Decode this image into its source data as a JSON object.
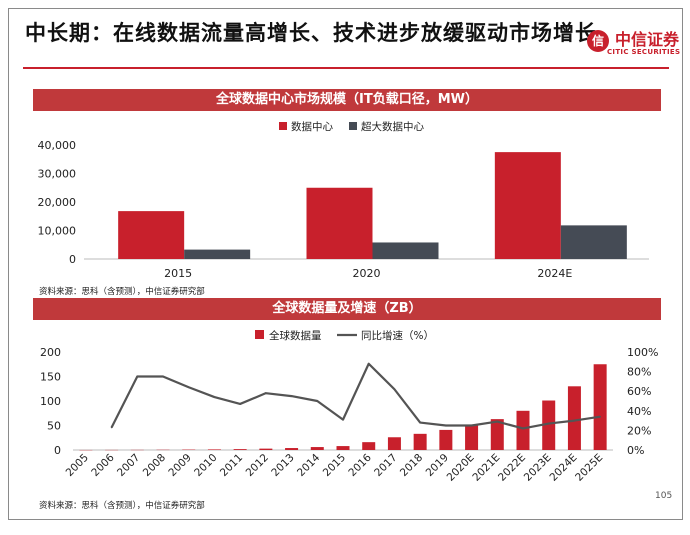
{
  "page": {
    "title": "中长期：在线数据流量高增长、技术进步放缓驱动市场增长",
    "logo_cn": "中信证券",
    "logo_en": "CITIC SECURITIES",
    "page_number": "105"
  },
  "colors": {
    "red": "#c8202c",
    "dark": "#454b55",
    "banner": "#c0393b",
    "line": "#545454"
  },
  "chart_data": [
    {
      "type": "bar",
      "title": "全球数据中心市场规模（IT负载口径，MW）",
      "categories": [
        "2015",
        "2020",
        "2024E"
      ],
      "series": [
        {
          "name": "数据中心",
          "values": [
            16800,
            25000,
            37500
          ]
        },
        {
          "name": "超大数据中心",
          "values": [
            3300,
            5800,
            11800
          ]
        }
      ],
      "yticks": [
        "0",
        "10,000",
        "20,000",
        "30,000",
        "40,000"
      ],
      "ylim": [
        0,
        40000
      ],
      "legend": "top-center",
      "source": "资料来源：思科（含预测），中信证券研究部"
    },
    {
      "type": "bar+line",
      "title": "全球数据量及增速（ZB）",
      "categories": [
        "2005",
        "2006",
        "2007",
        "2008",
        "2009",
        "2010",
        "2011",
        "2012",
        "2013",
        "2014",
        "2015",
        "2016",
        "2017",
        "2018",
        "2019",
        "2020E",
        "2021E",
        "2022E",
        "2023E",
        "2024E",
        "2025E"
      ],
      "series": [
        {
          "name": "全球数据量",
          "type": "bar",
          "axis": "left",
          "values": [
            0.1,
            0.2,
            0.3,
            0.5,
            0.8,
            1.2,
            1.8,
            2.8,
            4.0,
            6.0,
            8.0,
            16,
            26,
            33,
            41,
            50,
            63,
            80,
            101,
            130,
            175
          ]
        },
        {
          "name": "同比增速（%）",
          "type": "line",
          "axis": "right",
          "values": [
            null,
            23,
            75,
            75,
            64,
            54,
            47,
            58,
            55,
            50,
            31,
            88,
            62,
            28,
            25,
            25,
            29,
            22,
            27,
            30,
            34
          ]
        }
      ],
      "yticks_left": [
        "0",
        "50",
        "100",
        "150",
        "200"
      ],
      "ylim_left": [
        0,
        200
      ],
      "yticks_right": [
        "0%",
        "20%",
        "40%",
        "60%",
        "80%",
        "100%"
      ],
      "ylim_right": [
        0,
        100
      ],
      "legend": "top-center",
      "source": "资料来源：思科（含预测），中信证券研究部"
    }
  ]
}
